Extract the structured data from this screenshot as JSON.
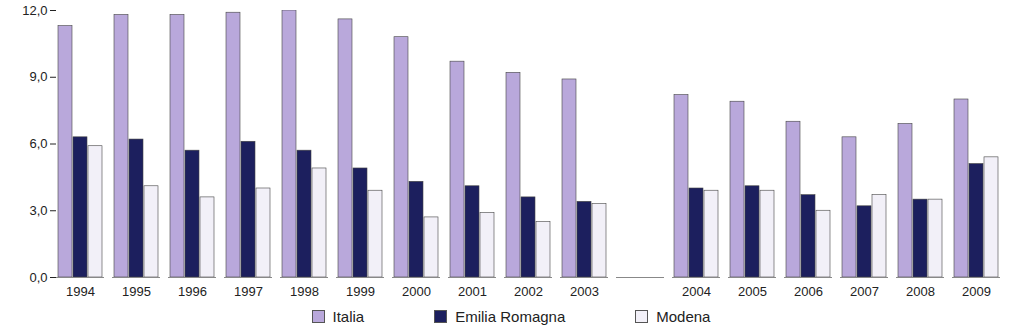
{
  "chart_data": {
    "type": "bar",
    "categories": [
      "1994",
      "1995",
      "1996",
      "1997",
      "1998",
      "1999",
      "2000",
      "2001",
      "2002",
      "2003",
      null,
      "2004",
      "2005",
      "2006",
      "2007",
      "2008",
      "2009"
    ],
    "series": [
      {
        "name": "Italia",
        "color": "#b9a8db",
        "values": [
          11.3,
          11.8,
          11.8,
          11.9,
          12.0,
          11.6,
          10.8,
          9.7,
          9.2,
          8.9,
          null,
          8.2,
          7.9,
          7.0,
          6.3,
          6.9,
          8.0
        ]
      },
      {
        "name": "Emilia Romagna",
        "color": "#1c1f5e",
        "values": [
          6.3,
          6.2,
          5.7,
          6.1,
          5.7,
          4.9,
          4.3,
          4.1,
          3.6,
          3.4,
          null,
          4.0,
          4.1,
          3.7,
          3.2,
          3.5,
          5.1
        ]
      },
      {
        "name": "Modena",
        "color": "#f2f0f8",
        "values": [
          5.9,
          4.1,
          3.6,
          4.0,
          4.9,
          3.9,
          2.7,
          2.9,
          2.5,
          3.3,
          null,
          3.9,
          3.9,
          3.0,
          3.7,
          3.5,
          5.4
        ]
      }
    ],
    "ylim": [
      0,
      12
    ],
    "yticks": [
      {
        "value": 0,
        "label": "0,0"
      },
      {
        "value": 3,
        "label": "3,0"
      },
      {
        "value": 6,
        "label": "6,0"
      },
      {
        "value": 9,
        "label": "9,0"
      },
      {
        "value": 12,
        "label": "12,0"
      }
    ],
    "grid": false,
    "legend": "bottom"
  }
}
